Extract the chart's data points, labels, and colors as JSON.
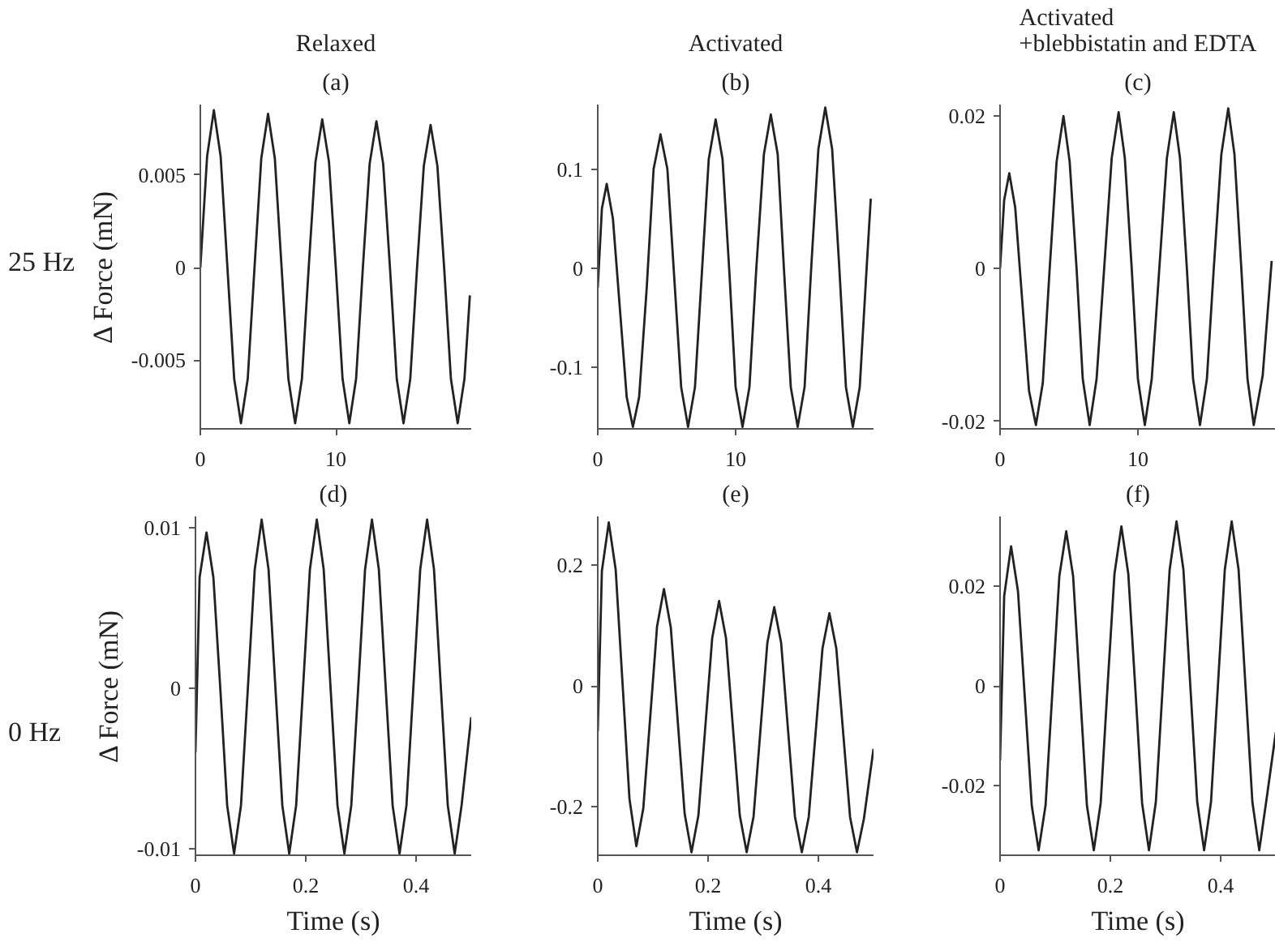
{
  "chart_data": [
    {
      "type": "line",
      "subtitle": "Relaxed",
      "title": "(a)",
      "ylabel": "Δ Force (mN)",
      "annotations": [
        "25 Hz"
      ],
      "xlim": [
        0,
        20
      ],
      "xticks": [
        0,
        10
      ],
      "ylim": [
        -0.0087,
        0.0088
      ],
      "yticks": [
        -0.005,
        0,
        0.005
      ],
      "series": [
        {
          "color": "#222222",
          "x": [
            0,
            0.5,
            1,
            1.5,
            2,
            2.5,
            3,
            3.5,
            4,
            4.5,
            5,
            5.5,
            6,
            6.5,
            7,
            7.5,
            8,
            8.5,
            9,
            9.5,
            10,
            10.5,
            11,
            11.5,
            12,
            12.5,
            13,
            13.5,
            14,
            14.5,
            15,
            15.5,
            16,
            16.5,
            17,
            17.5,
            18,
            18.5,
            19,
            19.5,
            19.9
          ],
          "values": [
            0,
            0.006,
            0.0085,
            0.006,
            0,
            -0.006,
            -0.0084,
            -0.006,
            0,
            0.0059,
            0.0083,
            0.0059,
            0,
            -0.006,
            -0.0084,
            -0.006,
            0,
            0.0057,
            0.008,
            0.0057,
            0,
            -0.006,
            -0.0084,
            -0.006,
            0,
            0.0056,
            0.0079,
            0.0056,
            0,
            -0.006,
            -0.0084,
            -0.006,
            0,
            0.0055,
            0.0077,
            0.0055,
            0,
            -0.006,
            -0.0084,
            -0.006,
            -0.0015
          ]
        }
      ]
    },
    {
      "type": "line",
      "subtitle": "Activated",
      "title": "(b)",
      "xlim": [
        0,
        20
      ],
      "xticks": [
        0,
        10
      ],
      "ylim": [
        -0.162,
        0.165
      ],
      "yticks": [
        -0.1,
        0,
        0.1
      ],
      "series": [
        {
          "color": "#222222",
          "x": [
            0,
            0.3,
            0.65,
            1.1,
            1.6,
            2.1,
            2.55,
            3.0,
            3.55,
            4.05,
            4.55,
            5.05,
            5.55,
            6.05,
            6.55,
            7.05,
            7.55,
            8.05,
            8.55,
            9.05,
            9.55,
            10.0,
            10.5,
            11.0,
            11.5,
            12.05,
            12.55,
            13.05,
            13.5,
            14.0,
            14.5,
            15.0,
            15.5,
            16.0,
            16.5,
            17.0,
            17.5,
            18.0,
            18.5,
            19.0,
            19.5,
            19.8
          ],
          "values": [
            -0.02,
            0.06,
            0.085,
            0.05,
            -0.04,
            -0.13,
            -0.16,
            -0.13,
            -0.02,
            0.1,
            0.135,
            0.1,
            -0.01,
            -0.12,
            -0.16,
            -0.12,
            -0.005,
            0.11,
            0.15,
            0.11,
            -0.005,
            -0.12,
            -0.16,
            -0.12,
            0,
            0.115,
            0.155,
            0.115,
            0,
            -0.12,
            -0.16,
            -0.12,
            0.005,
            0.12,
            0.162,
            0.12,
            0.005,
            -0.12,
            -0.16,
            -0.12,
            0,
            0.07
          ]
        }
      ]
    },
    {
      "type": "line",
      "subtitle": "Activated\n+blebbistatin and EDTA",
      "title": "(c)",
      "xlim": [
        0,
        20
      ],
      "xticks": [
        0,
        10
      ],
      "ylim": [
        -0.021,
        0.0215
      ],
      "yticks": [
        -0.02,
        0,
        0.02
      ],
      "series": [
        {
          "color": "#222222",
          "x": [
            0,
            0.3,
            0.67,
            1.1,
            1.6,
            2.1,
            2.6,
            3.1,
            3.6,
            4.1,
            4.6,
            5.05,
            5.55,
            6.0,
            6.5,
            7.0,
            7.55,
            8.1,
            8.6,
            9.05,
            9.55,
            10.0,
            10.5,
            11.0,
            11.55,
            12.1,
            12.6,
            13.05,
            13.55,
            14.0,
            14.5,
            15.0,
            15.5,
            16.05,
            16.55,
            17.0,
            17.5,
            17.95,
            18.4,
            19.05,
            19.7
          ],
          "values": [
            0,
            0.009,
            0.0125,
            0.008,
            -0.004,
            -0.016,
            -0.0205,
            -0.015,
            0,
            0.014,
            0.02,
            0.014,
            0,
            -0.0145,
            -0.0205,
            -0.0145,
            0,
            0.0145,
            0.0205,
            0.0145,
            0,
            -0.0145,
            -0.0205,
            -0.0145,
            0,
            0.0145,
            0.0205,
            0.0145,
            0,
            -0.0145,
            -0.0205,
            -0.0145,
            0,
            0.015,
            0.021,
            0.015,
            0,
            -0.0145,
            -0.0205,
            -0.014,
            0.001
          ]
        }
      ]
    },
    {
      "type": "line",
      "title": "(d)",
      "xlabel": "Time (s)",
      "ylabel": "Δ Force (mN)",
      "annotations": [
        "0 Hz"
      ],
      "xlim": [
        0,
        0.5
      ],
      "xticks": [
        0,
        0.2,
        0.4
      ],
      "ylim": [
        -0.0104,
        0.0107
      ],
      "yticks": [
        -0.01,
        0,
        0.01
      ],
      "series": [
        {
          "color": "#222222",
          "x": [
            0,
            0.0075,
            0.02,
            0.0325,
            0.045,
            0.0575,
            0.07,
            0.0825,
            0.095,
            0.1075,
            0.12,
            0.1325,
            0.145,
            0.1575,
            0.17,
            0.1825,
            0.195,
            0.2075,
            0.22,
            0.2325,
            0.245,
            0.2575,
            0.27,
            0.2825,
            0.295,
            0.3075,
            0.32,
            0.3325,
            0.345,
            0.3575,
            0.37,
            0.3825,
            0.395,
            0.4075,
            0.42,
            0.4325,
            0.445,
            0.4575,
            0.47,
            0.4825,
            0.5
          ],
          "values": [
            -0.004,
            0.0069,
            0.0097,
            0.0069,
            0,
            -0.0073,
            -0.0103,
            -0.0073,
            0,
            0.0074,
            0.0105,
            0.0074,
            0,
            -0.0073,
            -0.0103,
            -0.0073,
            0,
            0.0074,
            0.0105,
            0.0074,
            0,
            -0.0073,
            -0.0103,
            -0.0073,
            0,
            0.0074,
            0.0105,
            0.0074,
            0,
            -0.0073,
            -0.0103,
            -0.0073,
            0,
            0.0074,
            0.0105,
            0.0074,
            0,
            -0.0073,
            -0.0103,
            -0.0073,
            -0.0018
          ]
        }
      ]
    },
    {
      "type": "line",
      "title": "(e)",
      "xlabel": "Time (s)",
      "xlim": [
        0,
        0.5
      ],
      "xticks": [
        0,
        0.2,
        0.4
      ],
      "ylim": [
        -0.28,
        0.28
      ],
      "yticks": [
        -0.2,
        0,
        0.2
      ],
      "series": [
        {
          "color": "#222222",
          "x": [
            0,
            0.0075,
            0.02,
            0.0325,
            0.045,
            0.0575,
            0.07,
            0.0825,
            0.095,
            0.1075,
            0.12,
            0.1325,
            0.145,
            0.1575,
            0.17,
            0.1825,
            0.195,
            0.2075,
            0.22,
            0.2325,
            0.245,
            0.2575,
            0.27,
            0.2825,
            0.295,
            0.3075,
            0.32,
            0.3325,
            0.345,
            0.3575,
            0.37,
            0.3825,
            0.395,
            0.4075,
            0.42,
            0.4325,
            0.445,
            0.4575,
            0.47,
            0.4825,
            0.5
          ],
          "values": [
            -0.075,
            0.19,
            0.27,
            0.192,
            0.003,
            -0.187,
            -0.265,
            -0.203,
            -0.053,
            0.098,
            0.16,
            0.096,
            -0.058,
            -0.211,
            -0.275,
            -0.214,
            -0.068,
            0.079,
            0.14,
            0.079,
            -0.068,
            -0.214,
            -0.275,
            -0.216,
            -0.073,
            0.071,
            0.13,
            0.071,
            -0.073,
            -0.216,
            -0.275,
            -0.217,
            -0.078,
            0.062,
            0.12,
            0.062,
            -0.078,
            -0.217,
            -0.275,
            -0.22,
            -0.104
          ]
        }
      ]
    },
    {
      "type": "line",
      "title": "(f)",
      "xlabel": "Time (s)",
      "xlim": [
        0,
        0.5
      ],
      "xticks": [
        0,
        0.2,
        0.4
      ],
      "ylim": [
        -0.034,
        0.034
      ],
      "yticks": [
        -0.02,
        0,
        0.02
      ],
      "series": [
        {
          "color": "#222222",
          "x": [
            0,
            0.0075,
            0.02,
            0.0325,
            0.045,
            0.0575,
            0.07,
            0.0825,
            0.095,
            0.1075,
            0.12,
            0.1325,
            0.145,
            0.1575,
            0.17,
            0.1825,
            0.195,
            0.2075,
            0.22,
            0.2325,
            0.245,
            0.2575,
            0.27,
            0.2825,
            0.295,
            0.3075,
            0.32,
            0.3325,
            0.345,
            0.3575,
            0.37,
            0.3825,
            0.395,
            0.4075,
            0.42,
            0.4325,
            0.445,
            0.4575,
            0.47,
            0.4825,
            0.5
          ],
          "values": [
            -0.015,
            0.018,
            0.028,
            0.019,
            -0.0025,
            -0.024,
            -0.033,
            -0.024,
            -0.001,
            0.022,
            0.031,
            0.022,
            -0.001,
            -0.024,
            -0.033,
            -0.0235,
            0,
            0.0225,
            0.032,
            0.0225,
            0,
            -0.0235,
            -0.033,
            -0.0233,
            0,
            0.0233,
            0.033,
            0.0233,
            0,
            -0.0233,
            -0.033,
            -0.0233,
            0,
            0.0233,
            0.033,
            0.0233,
            0,
            -0.0233,
            -0.033,
            -0.0233,
            -0.0093
          ]
        }
      ]
    }
  ]
}
